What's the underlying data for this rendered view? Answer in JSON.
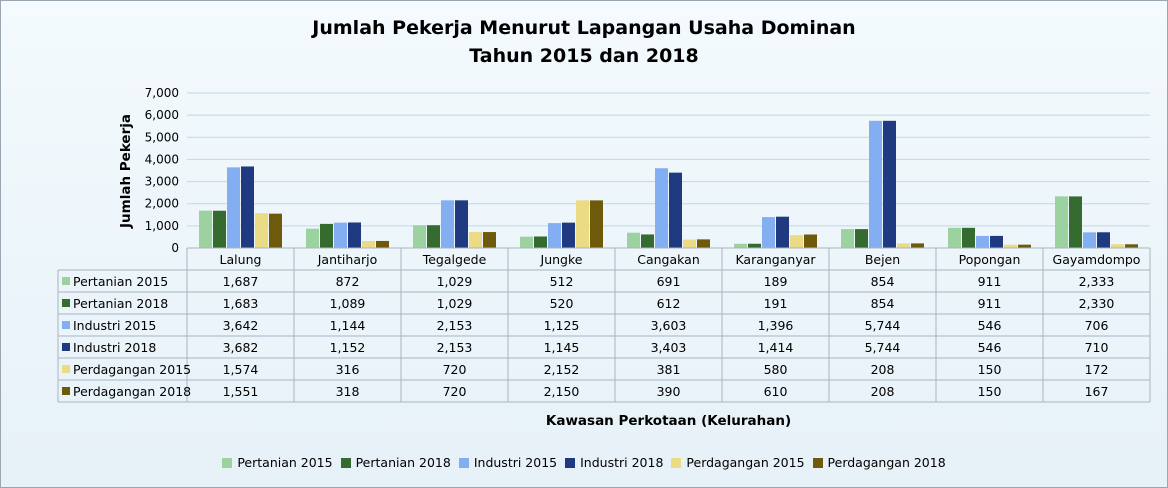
{
  "chart_data": {
    "type": "bar",
    "title": "Jumlah Pekerja Menurut Lapangan Usaha Dominan",
    "subtitle": "Tahun 2015 dan 2018",
    "xlabel": "Kawasan Perkotaan (Kelurahan)",
    "ylabel": "Jumlah Pekerja",
    "ylim": [
      0,
      7000
    ],
    "yticks": [
      "0",
      "1,000",
      "2,000",
      "3,000",
      "4,000",
      "5,000",
      "6,000",
      "7,000"
    ],
    "grid": true,
    "legend_position": "bottom",
    "data_table": true,
    "categories": [
      "Lalung",
      "Jantiharjo",
      "Tegalgede",
      "Jungke",
      "Cangakan",
      "Karanganyar",
      "Bejen",
      "Popongan",
      "Gayamdompo"
    ],
    "series": [
      {
        "name": "Pertanian 2015",
        "color": "#9bd29f",
        "values": [
          1687,
          872,
          1029,
          512,
          691,
          189,
          854,
          911,
          2333
        ]
      },
      {
        "name": "Pertanian 2018",
        "color": "#356b2f",
        "values": [
          1683,
          1089,
          1029,
          520,
          612,
          191,
          854,
          911,
          2330
        ]
      },
      {
        "name": "Industri 2015",
        "color": "#84aef2",
        "values": [
          3642,
          1144,
          2153,
          1125,
          3603,
          1396,
          5744,
          546,
          706
        ]
      },
      {
        "name": "Industri 2018",
        "color": "#1f3a80",
        "values": [
          3682,
          1152,
          2153,
          1145,
          3403,
          1414,
          5744,
          546,
          710
        ]
      },
      {
        "name": "Perdagangan 2015",
        "color": "#eadb84",
        "values": [
          1574,
          316,
          720,
          2152,
          381,
          580,
          208,
          150,
          172
        ]
      },
      {
        "name": "Perdagangan 2018",
        "color": "#6e5a0a",
        "values": [
          1551,
          318,
          720,
          2150,
          390,
          610,
          208,
          150,
          167
        ]
      }
    ]
  }
}
